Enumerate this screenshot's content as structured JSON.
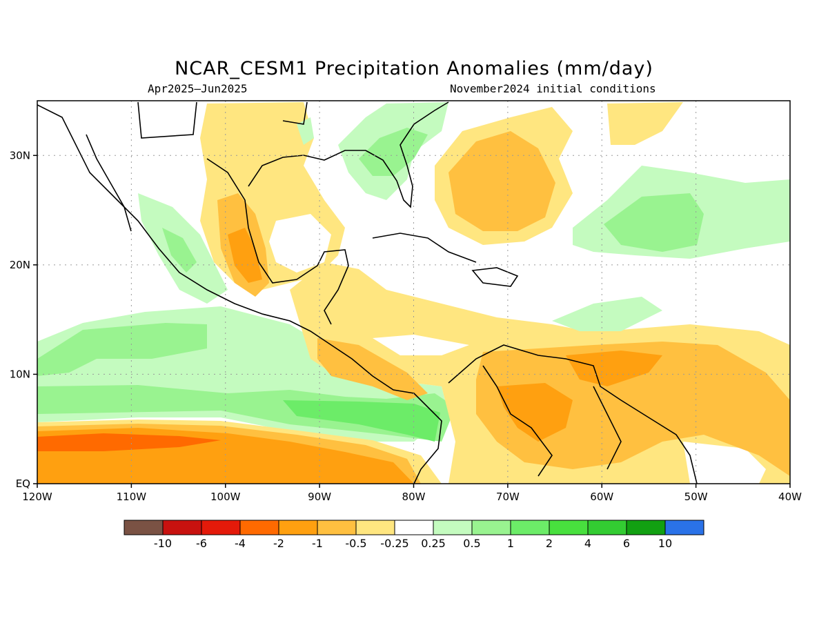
{
  "title": "NCAR_CESM1 Precipitation Anomalies (mm/day)",
  "subtitle_left": "Apr2025–Jun2025",
  "subtitle_right": "November2024 initial conditions",
  "map": {
    "lon_range": [
      -120,
      -40
    ],
    "lat_range": [
      0,
      35
    ],
    "x_ticks": [
      {
        "lon": -120,
        "label": "120W"
      },
      {
        "lon": -110,
        "label": "110W"
      },
      {
        "lon": -100,
        "label": "100W"
      },
      {
        "lon": -90,
        "label": "90W"
      },
      {
        "lon": -80,
        "label": "80W"
      },
      {
        "lon": -70,
        "label": "70W"
      },
      {
        "lon": -60,
        "label": "60W"
      },
      {
        "lon": -50,
        "label": "50W"
      },
      {
        "lon": -40,
        "label": "40W"
      }
    ],
    "y_ticks": [
      {
        "lat": 0,
        "label": "EQ"
      },
      {
        "lat": 10,
        "label": "10N"
      },
      {
        "lat": 20,
        "label": "20N"
      },
      {
        "lat": 30,
        "label": "30N"
      }
    ]
  },
  "colorbar": {
    "colors": [
      "#7a5244",
      "#c8120f",
      "#e41a0a",
      "#ff6a00",
      "#ffa010",
      "#ffc040",
      "#ffe680",
      "#ffffff",
      "#c4fbbf",
      "#99f390",
      "#6cec68",
      "#48e03e",
      "#33cc32",
      "#12a012",
      "#2a72e8"
    ],
    "labels": [
      "-10",
      "-6",
      "-4",
      "-2",
      "-1",
      "-0.5",
      "-0.25",
      "0.25",
      "0.5",
      "1",
      "2",
      "4",
      "6",
      "10"
    ]
  },
  "palette": {
    "neg_weak": "#ffe680",
    "neg_mod": "#ffc040",
    "neg_strong": "#ffa010",
    "neg_very": "#ff6a00",
    "pos_weak": "#c4fbbf",
    "pos_mod": "#99f390",
    "pos_strong": "#6cec68"
  }
}
